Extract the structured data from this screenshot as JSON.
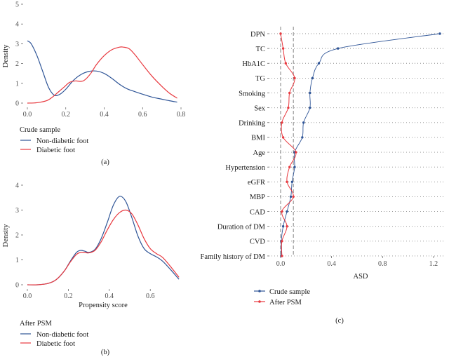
{
  "chart_data": [
    {
      "panel": "(a)",
      "type": "line",
      "ylabel": "Density",
      "xlabel": "",
      "xlim": [
        0,
        0.8
      ],
      "ylim": [
        0,
        5
      ],
      "xticks": [
        "0.0",
        "0.2",
        "0.4",
        "0.6",
        "0.8"
      ],
      "yticks": [
        "0",
        "1",
        "2",
        "3",
        "4",
        "5"
      ],
      "legend": {
        "title": "Crude sample",
        "position": "bottom-left"
      },
      "series": [
        {
          "name": "Non-diabetic foot",
          "color": "#2f5597",
          "x": [
            0.0,
            0.02,
            0.05,
            0.08,
            0.11,
            0.14,
            0.17,
            0.2,
            0.24,
            0.28,
            0.32,
            0.36,
            0.4,
            0.44,
            0.48,
            0.52,
            0.56,
            0.6,
            0.65,
            0.7,
            0.74,
            0.78
          ],
          "y": [
            3.15,
            3.0,
            2.4,
            1.6,
            0.8,
            0.4,
            0.45,
            0.7,
            1.15,
            1.45,
            1.6,
            1.62,
            1.5,
            1.25,
            0.95,
            0.72,
            0.58,
            0.45,
            0.3,
            0.2,
            0.12,
            0.05
          ]
        },
        {
          "name": "Diabetic foot",
          "color": "#e8393f",
          "x": [
            0.0,
            0.05,
            0.1,
            0.13,
            0.16,
            0.19,
            0.22,
            0.25,
            0.28,
            0.3,
            0.33,
            0.36,
            0.4,
            0.44,
            0.48,
            0.5,
            0.53,
            0.56,
            0.6,
            0.65,
            0.7,
            0.74,
            0.78
          ],
          "y": [
            0.0,
            0.02,
            0.12,
            0.3,
            0.55,
            0.8,
            1.05,
            1.12,
            1.1,
            1.18,
            1.5,
            1.95,
            2.4,
            2.7,
            2.83,
            2.83,
            2.75,
            2.45,
            1.95,
            1.35,
            0.85,
            0.5,
            0.25
          ]
        }
      ]
    },
    {
      "panel": "(b)",
      "type": "line",
      "ylabel": "Density",
      "xlabel": "Propensity score",
      "xlim": [
        0,
        0.75
      ],
      "ylim": [
        0,
        4
      ],
      "xticks": [
        "0.0",
        "0.2",
        "0.4",
        "0.6"
      ],
      "yticks": [
        "0",
        "1",
        "2",
        "3",
        "4"
      ],
      "legend": {
        "title": "After PSM",
        "position": "bottom-left"
      },
      "series": [
        {
          "name": "Non-diabetic foot",
          "color": "#2f5597",
          "x": [
            0.0,
            0.05,
            0.1,
            0.14,
            0.18,
            0.21,
            0.24,
            0.26,
            0.28,
            0.3,
            0.33,
            0.36,
            0.39,
            0.42,
            0.45,
            0.48,
            0.51,
            0.54,
            0.57,
            0.6,
            0.63,
            0.66,
            0.7,
            0.74
          ],
          "y": [
            0.0,
            0.0,
            0.05,
            0.2,
            0.55,
            0.95,
            1.3,
            1.38,
            1.35,
            1.3,
            1.42,
            1.85,
            2.5,
            3.2,
            3.55,
            3.35,
            2.7,
            1.95,
            1.45,
            1.25,
            1.12,
            0.95,
            0.6,
            0.22
          ]
        },
        {
          "name": "Diabetic foot",
          "color": "#e8393f",
          "x": [
            0.0,
            0.05,
            0.1,
            0.14,
            0.18,
            0.21,
            0.24,
            0.26,
            0.28,
            0.3,
            0.33,
            0.36,
            0.39,
            0.42,
            0.45,
            0.48,
            0.51,
            0.54,
            0.57,
            0.6,
            0.63,
            0.66,
            0.7,
            0.74
          ],
          "y": [
            0.0,
            0.0,
            0.05,
            0.2,
            0.55,
            0.92,
            1.22,
            1.3,
            1.3,
            1.28,
            1.38,
            1.72,
            2.2,
            2.62,
            2.9,
            3.0,
            2.85,
            2.4,
            1.85,
            1.45,
            1.25,
            1.1,
            0.72,
            0.3
          ]
        }
      ]
    },
    {
      "panel": "(c)",
      "type": "dot-line",
      "xlabel": "ASD",
      "xlim": [
        0,
        1.25
      ],
      "xticks": [
        "0.0",
        "0.4",
        "0.8",
        "1.2"
      ],
      "ref_lines": [
        0.0,
        0.1
      ],
      "categories": [
        "DPN",
        "TC",
        "HbA1C",
        "TG",
        "Smoking",
        "Sex",
        "Drinking",
        "BMI",
        "Age",
        "Hypertension",
        "eGFR",
        "MBP",
        "CAD",
        "Duration of DM",
        "CVD",
        "Family history of DM"
      ],
      "legend": {
        "position": "bottom-left"
      },
      "series": [
        {
          "name": "Crude sample",
          "color": "#2f5597",
          "values": [
            1.25,
            0.45,
            0.3,
            0.25,
            0.23,
            0.23,
            0.18,
            0.17,
            0.11,
            0.11,
            0.09,
            0.08,
            0.05,
            0.02,
            0.005,
            0.005
          ]
        },
        {
          "name": "After PSM",
          "color": "#e8393f",
          "values": [
            0.0,
            0.02,
            0.04,
            0.11,
            0.07,
            0.06,
            0.01,
            0.02,
            0.12,
            0.07,
            0.05,
            0.1,
            0.01,
            0.05,
            0.01,
            0.01
          ]
        }
      ]
    }
  ]
}
